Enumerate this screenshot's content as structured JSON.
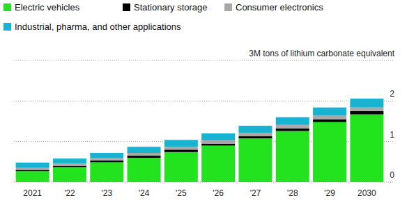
{
  "chart_data": {
    "type": "bar",
    "stacked": true,
    "grid": true,
    "legend": "top-left",
    "categories": [
      "2021",
      "'22",
      "'23",
      "'24",
      "'25",
      "'26",
      "'27",
      "'28",
      "'29",
      "2030"
    ],
    "series": [
      {
        "name": "Electric vehicles",
        "color": "#22e31e",
        "values": [
          0.27,
          0.37,
          0.49,
          0.6,
          0.74,
          0.9,
          1.08,
          1.26,
          1.48,
          1.67
        ]
      },
      {
        "name": "Stationary storage",
        "color": "#000000",
        "values": [
          0.03,
          0.03,
          0.04,
          0.05,
          0.06,
          0.05,
          0.05,
          0.06,
          0.07,
          0.08
        ]
      },
      {
        "name": "Consumer electronics",
        "color": "#a8a8a8",
        "values": [
          0.06,
          0.06,
          0.06,
          0.07,
          0.07,
          0.08,
          0.08,
          0.09,
          0.09,
          0.09
        ]
      },
      {
        "name": "Industrial, pharma, and other applications",
        "color": "#17b3d1",
        "values": [
          0.12,
          0.12,
          0.13,
          0.15,
          0.17,
          0.17,
          0.18,
          0.19,
          0.2,
          0.22
        ]
      }
    ],
    "ylim": [
      0,
      3
    ],
    "yticks": [
      0,
      1,
      2,
      {
        "value": 3,
        "label": "3M tons of lithium carbonate equivalent"
      }
    ]
  }
}
